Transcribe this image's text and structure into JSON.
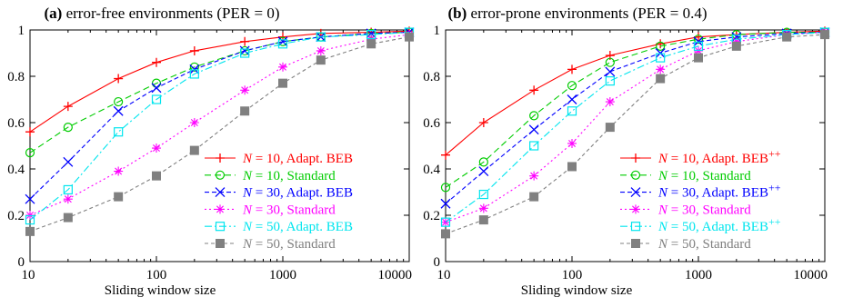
{
  "chart_data": [
    {
      "type": "line",
      "title_tag": "(a)",
      "title": "error-free environments (PER = 0)",
      "xlabel": "Sliding window size",
      "ylabel": "",
      "xscale": "log",
      "xlim": [
        10,
        10000
      ],
      "ylim": [
        0,
        1
      ],
      "xticks": [
        10,
        100,
        1000,
        10000
      ],
      "xtick_labels": [
        "10",
        "100",
        "1000",
        "10000"
      ],
      "yticks": [
        0,
        0.2,
        0.4,
        0.6,
        0.8,
        1
      ],
      "ytick_labels": [
        "0",
        "0.2",
        "0.4",
        "0.6",
        "0.8",
        "1"
      ],
      "legend_position": "center-right",
      "x": [
        10,
        20,
        50,
        100,
        200,
        500,
        1000,
        2000,
        5000,
        10000
      ],
      "series": [
        {
          "name": "N = 10, Adapt. BEB",
          "color": "#ff0000",
          "marker": "plus",
          "dash": "",
          "values": [
            0.56,
            0.67,
            0.79,
            0.86,
            0.91,
            0.95,
            0.97,
            0.985,
            0.99,
            0.995
          ]
        },
        {
          "name": "N = 10, Standard",
          "color": "#00cc00",
          "marker": "circle",
          "dash": "7,4",
          "values": [
            0.47,
            0.58,
            0.69,
            0.77,
            0.84,
            0.91,
            0.95,
            0.97,
            0.985,
            0.99
          ]
        },
        {
          "name": "N = 30, Adapt. BEB",
          "color": "#0000ff",
          "marker": "x",
          "dash": "5,3",
          "values": [
            0.27,
            0.43,
            0.65,
            0.75,
            0.83,
            0.91,
            0.95,
            0.97,
            0.985,
            0.99
          ]
        },
        {
          "name": "N = 30, Standard",
          "color": "#ff00ff",
          "marker": "star",
          "dash": "2,3",
          "values": [
            0.2,
            0.27,
            0.39,
            0.49,
            0.6,
            0.74,
            0.84,
            0.91,
            0.96,
            0.98
          ]
        },
        {
          "name": "N = 50, Adapt. BEB",
          "color": "#00e5ee",
          "marker": "square",
          "dash": "8,3,2,3",
          "values": [
            0.18,
            0.31,
            0.56,
            0.7,
            0.81,
            0.9,
            0.94,
            0.97,
            0.98,
            0.99
          ]
        },
        {
          "name": "N = 50, Standard",
          "color": "#808080",
          "marker": "filled-square",
          "dash": "4,3",
          "values": [
            0.13,
            0.19,
            0.28,
            0.37,
            0.48,
            0.65,
            0.77,
            0.87,
            0.94,
            0.97
          ]
        }
      ]
    },
    {
      "type": "line",
      "title_tag": "(b)",
      "title": "error-prone environments (PER = 0.4)",
      "xlabel": "Sliding window size",
      "ylabel": "",
      "xscale": "log",
      "xlim": [
        10,
        10000
      ],
      "ylim": [
        0,
        1
      ],
      "xticks": [
        10,
        100,
        1000,
        10000
      ],
      "xtick_labels": [
        "10",
        "100",
        "1000",
        "10000"
      ],
      "yticks": [
        0,
        0.2,
        0.4,
        0.6,
        0.8,
        1
      ],
      "ytick_labels": [
        "0",
        "0.2",
        "0.4",
        "0.6",
        "0.8",
        "1"
      ],
      "legend_position": "center-right",
      "x": [
        10,
        20,
        50,
        100,
        200,
        500,
        1000,
        2000,
        5000,
        10000
      ],
      "series": [
        {
          "name": "N = 10, Adapt. BEB++",
          "color": "#ff0000",
          "marker": "plus",
          "dash": "",
          "values": [
            0.46,
            0.6,
            0.74,
            0.83,
            0.89,
            0.94,
            0.97,
            0.98,
            0.99,
            0.995
          ]
        },
        {
          "name": "N = 10, Standard",
          "color": "#00cc00",
          "marker": "circle",
          "dash": "7,4",
          "values": [
            0.32,
            0.43,
            0.63,
            0.76,
            0.86,
            0.93,
            0.96,
            0.98,
            0.99,
            0.99
          ]
        },
        {
          "name": "N = 30, Adapt. BEB++",
          "color": "#0000ff",
          "marker": "x",
          "dash": "5,3",
          "values": [
            0.25,
            0.39,
            0.57,
            0.7,
            0.82,
            0.9,
            0.95,
            0.97,
            0.985,
            0.99
          ]
        },
        {
          "name": "N = 30, Standard",
          "color": "#ff00ff",
          "marker": "star",
          "dash": "2,3",
          "values": [
            0.17,
            0.23,
            0.37,
            0.51,
            0.69,
            0.83,
            0.91,
            0.95,
            0.98,
            0.99
          ]
        },
        {
          "name": "N = 50, Adapt. BEB++",
          "color": "#00e5ee",
          "marker": "square",
          "dash": "8,3,2,3",
          "values": [
            0.17,
            0.29,
            0.5,
            0.65,
            0.78,
            0.88,
            0.93,
            0.96,
            0.98,
            0.99
          ]
        },
        {
          "name": "N = 50, Standard",
          "color": "#808080",
          "marker": "filled-square",
          "dash": "4,3",
          "values": [
            0.12,
            0.18,
            0.28,
            0.41,
            0.58,
            0.79,
            0.88,
            0.93,
            0.97,
            0.98
          ]
        }
      ]
    }
  ]
}
